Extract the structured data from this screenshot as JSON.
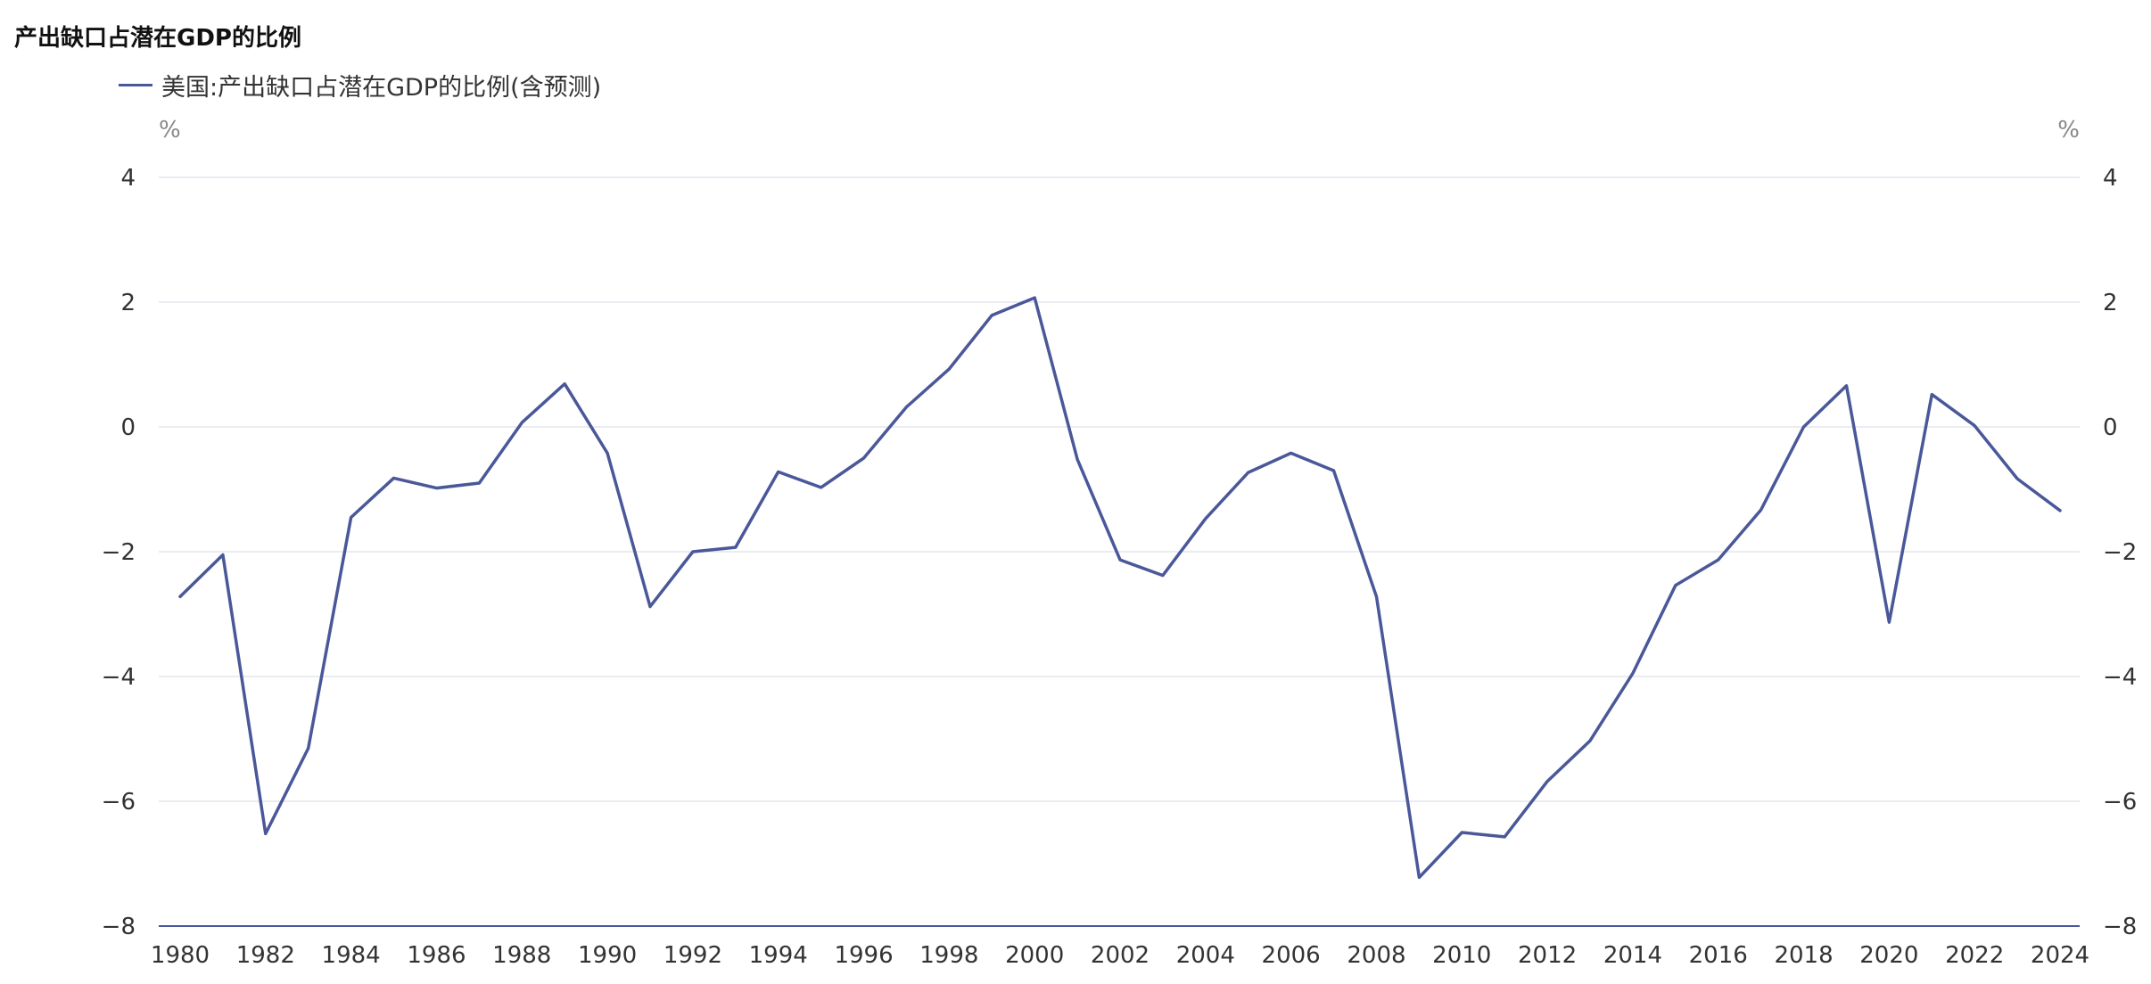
{
  "chart_data": {
    "type": "line",
    "title": "产出缺口占潜在GDP的比例",
    "y_unit_left": "%",
    "y_unit_right": "%",
    "ylim": [
      -8,
      4
    ],
    "yticks": [
      4,
      2,
      0,
      -2,
      -4,
      -6,
      -8
    ],
    "yticks_labels": [
      "4",
      "2",
      "0",
      "−2",
      "−4",
      "−6",
      "−8"
    ],
    "x_tick_labels": [
      "1980",
      "1982",
      "1984",
      "1986",
      "1988",
      "1990",
      "1992",
      "1994",
      "1996",
      "1998",
      "2000",
      "2002",
      "2004",
      "2006",
      "2008",
      "2010",
      "2012",
      "2014",
      "2016",
      "2018",
      "2020",
      "2022",
      "2024"
    ],
    "x": [
      1980,
      1981,
      1982,
      1983,
      1984,
      1985,
      1986,
      1987,
      1988,
      1989,
      1990,
      1991,
      1992,
      1993,
      1994,
      1995,
      1996,
      1997,
      1998,
      1999,
      2000,
      2001,
      2002,
      2003,
      2004,
      2005,
      2006,
      2007,
      2008,
      2009,
      2010,
      2011,
      2012,
      2013,
      2014,
      2015,
      2016,
      2017,
      2018,
      2019,
      2020,
      2021,
      2022,
      2023,
      2024
    ],
    "series": [
      {
        "name": "美国:产出缺口占潜在GDP的比例(含预测)",
        "color": "#4a5899",
        "values": [
          -2.72,
          -2.05,
          -6.52,
          -5.15,
          -1.45,
          -0.82,
          -0.98,
          -0.9,
          0.07,
          0.69,
          -0.42,
          -2.88,
          -2.0,
          -1.93,
          -0.72,
          -0.97,
          -0.5,
          0.32,
          0.93,
          1.79,
          2.07,
          -0.52,
          -2.13,
          -2.38,
          -1.47,
          -0.73,
          -0.42,
          -0.7,
          -2.72,
          -7.22,
          -6.5,
          -6.57,
          -5.68,
          -5.03,
          -3.95,
          -2.54,
          -2.13,
          -1.33,
          0.0,
          0.66,
          -3.13,
          0.52,
          0.02,
          -0.83,
          -1.34
        ]
      }
    ],
    "grid": true,
    "legend_position": "top-left"
  }
}
